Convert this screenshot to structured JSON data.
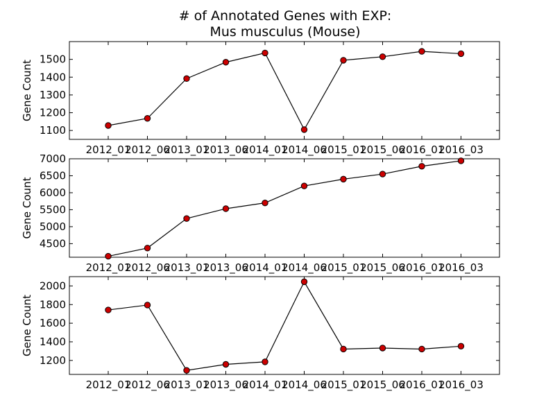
{
  "title_line1": "# of Annotated Genes with EXP:",
  "title_line2": "Mus musculus (Mouse)",
  "chart_data": [
    {
      "type": "line",
      "ylabel": "Gene Count",
      "categories": [
        "2012_01",
        "2012_06",
        "2013_01",
        "2013_06",
        "2014_01",
        "2014_06",
        "2015_01",
        "2015_06",
        "2016_01",
        "2016_03"
      ],
      "values": [
        1128,
        1168,
        1392,
        1484,
        1536,
        1105,
        1495,
        1515,
        1545,
        1532
      ],
      "ylim": [
        1050,
        1600
      ],
      "yticks": [
        1100,
        1200,
        1300,
        1400,
        1500
      ],
      "marker_color": "#cc0000",
      "line_color": "#000000"
    },
    {
      "type": "line",
      "ylabel": "Gene Count",
      "categories": [
        "2012_01",
        "2012_06",
        "2013_01",
        "2013_06",
        "2014_01",
        "2014_06",
        "2015_01",
        "2015_06",
        "2016_01",
        "2016_03"
      ],
      "values": [
        4130,
        4370,
        5240,
        5530,
        5700,
        6200,
        6400,
        6550,
        6780,
        6940
      ],
      "ylim": [
        4100,
        7000
      ],
      "yticks": [
        4500,
        5000,
        5500,
        6000,
        6500,
        7000
      ],
      "marker_color": "#cc0000",
      "line_color": "#000000"
    },
    {
      "type": "line",
      "ylabel": "Gene Count",
      "categories": [
        "2012_01",
        "2012_06",
        "2013_01",
        "2013_06",
        "2014_01",
        "2014_06",
        "2015_01",
        "2015_06",
        "2016_01",
        "2016_03"
      ],
      "values": [
        1742,
        1795,
        1093,
        1158,
        1185,
        2045,
        1322,
        1333,
        1322,
        1353
      ],
      "ylim": [
        1050,
        2100
      ],
      "yticks": [
        1200,
        1400,
        1600,
        1800,
        2000
      ],
      "marker_color": "#cc0000",
      "line_color": "#000000"
    }
  ]
}
